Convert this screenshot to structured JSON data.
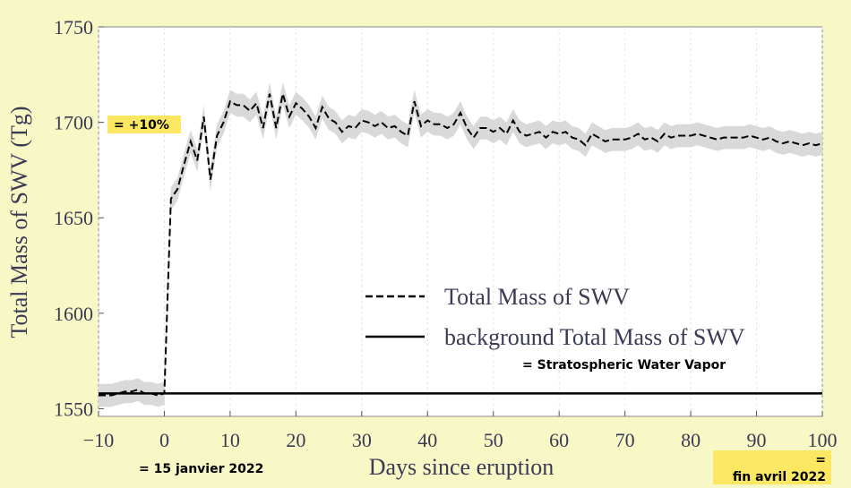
{
  "chart_data": {
    "type": "line",
    "xlabel": "Days since eruption",
    "ylabel": "Total Mass of SWV (Tg)",
    "xlim": [
      -10,
      100
    ],
    "ylim": [
      1546,
      1750
    ],
    "xticks": [
      {
        "value": -10,
        "label": "−10"
      },
      0,
      10,
      20,
      30,
      40,
      50,
      60,
      70,
      80,
      90,
      100
    ],
    "yticks": [
      1550,
      1600,
      1650,
      1700,
      1750
    ],
    "grid": true,
    "legend": "lower right",
    "x": [
      -10,
      -9,
      -8,
      -7,
      -6,
      -5,
      -4,
      -3,
      -2,
      -1,
      0,
      1,
      2,
      3,
      4,
      5,
      6,
      7,
      8,
      9,
      10,
      11,
      12,
      13,
      14,
      15,
      16,
      17,
      18,
      19,
      20,
      21,
      22,
      23,
      24,
      25,
      26,
      27,
      28,
      29,
      30,
      31,
      32,
      33,
      34,
      35,
      36,
      37,
      38,
      39,
      40,
      41,
      42,
      43,
      44,
      45,
      46,
      47,
      48,
      49,
      50,
      51,
      52,
      53,
      54,
      55,
      56,
      57,
      58,
      59,
      60,
      61,
      62,
      63,
      64,
      65,
      66,
      67,
      68,
      69,
      70,
      71,
      72,
      73,
      74,
      75,
      76,
      77,
      78,
      79,
      80,
      81,
      82,
      83,
      84,
      85,
      86,
      87,
      88,
      89,
      90,
      91,
      92,
      93,
      94,
      95,
      96,
      97,
      98,
      99,
      100
    ],
    "series": [
      {
        "name": "Total Mass of SWV",
        "color": "#000000",
        "dash": true,
        "band_color": "#d9d9d9",
        "error": 6,
        "values": [
          1557,
          1557,
          1557,
          1558,
          1559,
          1559,
          1560,
          1558,
          1558,
          1557,
          1558,
          1660,
          1665,
          1678,
          1690,
          1680,
          1703,
          1670,
          1693,
          1700,
          1711,
          1709,
          1709,
          1706,
          1710,
          1697,
          1715,
          1697,
          1715,
          1703,
          1710,
          1707,
          1703,
          1697,
          1708,
          1702,
          1700,
          1695,
          1698,
          1697,
          1701,
          1700,
          1698,
          1700,
          1697,
          1698,
          1695,
          1693,
          1711,
          1698,
          1701,
          1699,
          1699,
          1697,
          1699,
          1705,
          1697,
          1692,
          1697,
          1697,
          1695,
          1697,
          1694,
          1701,
          1695,
          1693,
          1694,
          1695,
          1692,
          1695,
          1694,
          1695,
          1692,
          1691,
          1688,
          1694,
          1692,
          1690,
          1691,
          1691,
          1691,
          1692,
          1694,
          1691,
          1692,
          1690,
          1694,
          1692,
          1693,
          1693,
          1693,
          1694,
          1693,
          1692,
          1691,
          1692,
          1692,
          1692,
          1692,
          1693,
          1692,
          1691,
          1692,
          1690,
          1689,
          1690,
          1689,
          1688,
          1689,
          1688,
          1689
        ]
      },
      {
        "name": "background Total Mass of SWV",
        "color": "#000000",
        "dash": false,
        "x": [
          -10,
          100
        ],
        "values": [
          1558,
          1558
        ]
      }
    ],
    "annotations": [
      "= +10%",
      "= Stratospheric Water Vapor",
      "= 15 janvier 2022",
      "=",
      "fin avril 2022"
    ]
  }
}
